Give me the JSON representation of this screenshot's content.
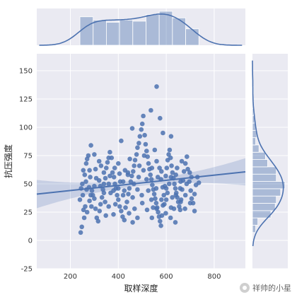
{
  "chart_data": {
    "type": "scatter",
    "kind": "jointplot",
    "xlabel": "取样深度",
    "ylabel": "抗压强度",
    "xlim": [
      60,
      930
    ],
    "ylim": [
      -25,
      165
    ],
    "xticks": [
      200,
      400,
      600,
      800
    ],
    "yticks": [
      -25,
      0,
      25,
      50,
      75,
      100,
      125,
      150
    ],
    "grid": true,
    "regression": {
      "slope": 0.0226,
      "intercept": 39.6,
      "ci_halfwidth_min": 2.5
    },
    "points": [
      [
        243,
        7
      ],
      [
        248,
        12
      ],
      [
        258,
        20
      ],
      [
        255,
        27
      ],
      [
        262,
        30
      ],
      [
        240,
        36
      ],
      [
        252,
        40
      ],
      [
        250,
        50
      ],
      [
        260,
        58
      ],
      [
        266,
        68
      ],
      [
        270,
        72
      ],
      [
        275,
        75
      ],
      [
        280,
        62
      ],
      [
        286,
        84
      ],
      [
        283,
        56
      ],
      [
        278,
        47
      ],
      [
        290,
        44
      ],
      [
        294,
        40
      ],
      [
        300,
        37
      ],
      [
        305,
        28
      ],
      [
        310,
        20
      ],
      [
        316,
        17
      ],
      [
        322,
        26
      ],
      [
        326,
        32
      ],
      [
        332,
        38
      ],
      [
        336,
        45
      ],
      [
        340,
        50
      ],
      [
        346,
        55
      ],
      [
        350,
        64
      ],
      [
        355,
        69
      ],
      [
        360,
        73
      ],
      [
        365,
        78
      ],
      [
        372,
        73
      ],
      [
        376,
        60
      ],
      [
        382,
        56
      ],
      [
        386,
        50
      ],
      [
        390,
        46
      ],
      [
        395,
        40
      ],
      [
        400,
        36
      ],
      [
        406,
        30
      ],
      [
        412,
        26
      ],
      [
        418,
        21
      ],
      [
        425,
        18
      ],
      [
        430,
        29
      ],
      [
        436,
        34
      ],
      [
        442,
        41
      ],
      [
        446,
        46
      ],
      [
        452,
        52
      ],
      [
        456,
        57
      ],
      [
        462,
        61
      ],
      [
        466,
        66
      ],
      [
        470,
        71
      ],
      [
        476,
        76
      ],
      [
        480,
        82
      ],
      [
        486,
        86
      ],
      [
        490,
        92
      ],
      [
        496,
        98
      ],
      [
        500,
        103
      ],
      [
        504,
        110
      ],
      [
        510,
        93
      ],
      [
        514,
        85
      ],
      [
        518,
        79
      ],
      [
        522,
        74
      ],
      [
        526,
        68
      ],
      [
        530,
        63
      ],
      [
        534,
        58
      ],
      [
        538,
        54
      ],
      [
        542,
        49
      ],
      [
        546,
        45
      ],
      [
        550,
        41
      ],
      [
        554,
        37
      ],
      [
        558,
        33
      ],
      [
        562,
        29
      ],
      [
        566,
        25
      ],
      [
        570,
        21
      ],
      [
        574,
        17
      ],
      [
        578,
        13
      ],
      [
        582,
        22
      ],
      [
        586,
        31
      ],
      [
        590,
        40
      ],
      [
        594,
        48
      ],
      [
        598,
        57
      ],
      [
        602,
        64
      ],
      [
        606,
        71
      ],
      [
        610,
        76
      ],
      [
        614,
        80
      ],
      [
        618,
        73
      ],
      [
        622,
        66
      ],
      [
        626,
        60
      ],
      [
        630,
        55
      ],
      [
        634,
        50
      ],
      [
        638,
        46
      ],
      [
        642,
        42
      ],
      [
        646,
        38
      ],
      [
        650,
        34
      ],
      [
        654,
        30
      ],
      [
        658,
        27
      ],
      [
        662,
        36
      ],
      [
        666,
        45
      ],
      [
        670,
        53
      ],
      [
        674,
        61
      ],
      [
        680,
        68
      ],
      [
        686,
        74
      ],
      [
        690,
        63
      ],
      [
        696,
        52
      ],
      [
        702,
        44
      ],
      [
        706,
        37
      ],
      [
        712,
        33
      ],
      [
        718,
        41
      ],
      [
        724,
        49
      ],
      [
        730,
        56
      ],
      [
        736,
        51
      ],
      [
        560,
        136
      ],
      [
        536,
        115
      ],
      [
        574,
        108
      ],
      [
        458,
        99
      ],
      [
        586,
        95
      ],
      [
        412,
        88
      ],
      [
        620,
        92
      ],
      [
        270,
        25
      ],
      [
        280,
        35
      ],
      [
        300,
        48
      ],
      [
        320,
        53
      ],
      [
        340,
        42
      ],
      [
        360,
        30
      ],
      [
        380,
        23
      ],
      [
        400,
        46
      ],
      [
        420,
        52
      ],
      [
        440,
        58
      ],
      [
        460,
        38
      ],
      [
        480,
        45
      ],
      [
        500,
        33
      ],
      [
        520,
        27
      ],
      [
        540,
        64
      ],
      [
        560,
        70
      ],
      [
        580,
        61
      ],
      [
        600,
        36
      ],
      [
        620,
        29
      ],
      [
        640,
        58
      ],
      [
        660,
        52
      ],
      [
        680,
        40
      ],
      [
        700,
        33
      ],
      [
        245,
        46
      ],
      [
        265,
        52
      ],
      [
        285,
        40
      ],
      [
        305,
        63
      ],
      [
        325,
        48
      ],
      [
        345,
        34
      ],
      [
        365,
        57
      ],
      [
        385,
        64
      ],
      [
        405,
        59
      ],
      [
        425,
        44
      ],
      [
        445,
        24
      ],
      [
        465,
        50
      ],
      [
        485,
        56
      ],
      [
        505,
        62
      ],
      [
        525,
        44
      ],
      [
        545,
        29
      ],
      [
        565,
        56
      ],
      [
        585,
        47
      ],
      [
        605,
        42
      ],
      [
        625,
        38
      ],
      [
        645,
        64
      ],
      [
        665,
        70
      ],
      [
        685,
        50
      ],
      [
        705,
        56
      ],
      [
        552,
        80
      ],
      [
        572,
        64
      ],
      [
        592,
        32
      ],
      [
        612,
        50
      ],
      [
        632,
        28
      ],
      [
        508,
        75
      ],
      [
        488,
        66
      ],
      [
        468,
        28
      ],
      [
        448,
        72
      ],
      [
        428,
        62
      ],
      [
        408,
        52
      ],
      [
        388,
        32
      ],
      [
        368,
        42
      ],
      [
        348,
        22
      ],
      [
        328,
        66
      ],
      [
        308,
        55
      ],
      [
        288,
        30
      ],
      [
        268,
        45
      ],
      [
        254,
        62
      ],
      [
        498,
        40
      ],
      [
        518,
        54
      ],
      [
        538,
        36
      ],
      [
        558,
        46
      ],
      [
        578,
        54
      ],
      [
        598,
        24
      ],
      [
        618,
        20
      ],
      [
        638,
        16
      ],
      [
        658,
        46
      ],
      [
        678,
        28
      ],
      [
        698,
        60
      ],
      [
        718,
        26
      ],
      [
        480,
        20
      ],
      [
        460,
        16
      ],
      [
        440,
        60
      ],
      [
        420,
        40
      ],
      [
        300,
        76
      ],
      [
        320,
        70
      ],
      [
        340,
        60
      ],
      [
        360,
        50
      ],
      [
        380,
        44
      ],
      [
        400,
        68
      ],
      [
        540,
        20
      ],
      [
        560,
        28
      ],
      [
        580,
        36
      ],
      [
        600,
        46
      ],
      [
        620,
        56
      ],
      [
        640,
        40
      ],
      [
        660,
        34
      ]
    ]
  },
  "watermark": {
    "text": "祥帅的小星"
  },
  "colors": {
    "accent": "#4c72b0",
    "axes_bg": "#eaeaf2",
    "grid": "#ffffff"
  }
}
